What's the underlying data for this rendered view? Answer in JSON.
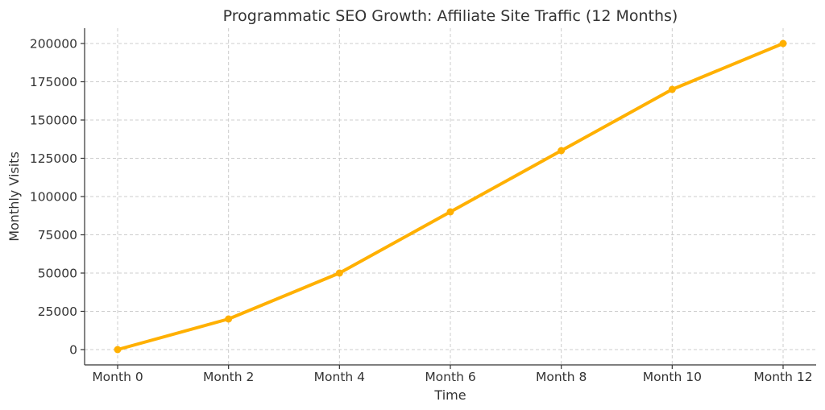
{
  "chart_data": {
    "type": "line",
    "title": "Programmatic SEO Growth: Affiliate Site Traffic (12 Months)",
    "xlabel": "Time",
    "ylabel": "Monthly Visits",
    "categories": [
      "Month 0",
      "Month 2",
      "Month 4",
      "Month 6",
      "Month 8",
      "Month 10",
      "Month 12"
    ],
    "series": [
      {
        "values": [
          0,
          20000,
          50000,
          90000,
          130000,
          170000,
          200000
        ],
        "color": "#FFB000"
      }
    ],
    "yticks": [
      0,
      25000,
      50000,
      75000,
      100000,
      125000,
      150000,
      175000,
      200000
    ],
    "ylim": [
      -10000,
      210000
    ],
    "grid": true,
    "legend": "none",
    "marker": "circle"
  }
}
